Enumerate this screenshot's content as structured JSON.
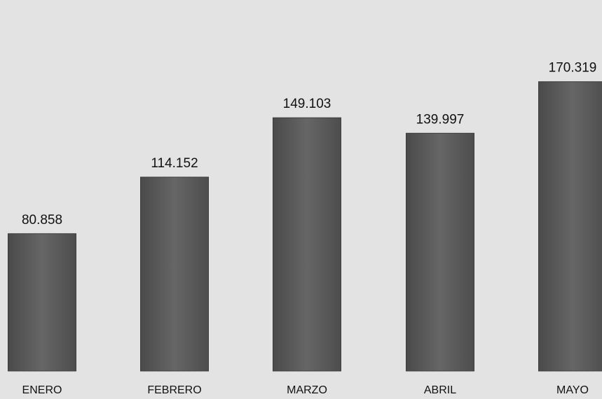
{
  "chart_data": {
    "type": "bar",
    "categories": [
      "ENERO",
      "FEBRERO",
      "MARZO",
      "ABRIL",
      "MAYO"
    ],
    "values": [
      80858,
      114152,
      149103,
      139997,
      170319
    ],
    "data_labels": [
      "80.858",
      "114.152",
      "149.103",
      "139.997",
      "170.319"
    ],
    "bar_color": "#5a5a5a",
    "background_color": "#e3e3e3",
    "grid": false,
    "legend": "none"
  }
}
